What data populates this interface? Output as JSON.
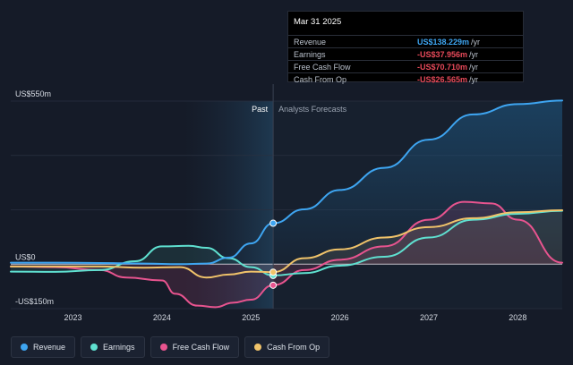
{
  "chart_data": {
    "type": "line",
    "title": "",
    "y_axis": {
      "min": -150,
      "max": 550,
      "ticks": [
        {
          "value": 550,
          "label": "US$550m"
        },
        {
          "value": 0,
          "label": "US$0"
        },
        {
          "value": -150,
          "label": "-US$150m"
        }
      ]
    },
    "x_axis": {
      "min": 2022.3,
      "max": 2028.5,
      "ticks": [
        {
          "value": 2023,
          "label": "2023"
        },
        {
          "value": 2024,
          "label": "2024"
        },
        {
          "value": 2025,
          "label": "2025"
        },
        {
          "value": 2026,
          "label": "2026"
        },
        {
          "value": 2027,
          "label": "2027"
        },
        {
          "value": 2028,
          "label": "2028"
        }
      ]
    },
    "divider": {
      "x": 2025.25,
      "past_label": "Past",
      "forecast_label": "Analysts Forecasts",
      "highlight_start": 2024.25
    },
    "series": [
      {
        "name": "Revenue",
        "color": "#3ea5f1",
        "points": [
          [
            2022.3,
            5
          ],
          [
            2022.8,
            5
          ],
          [
            2023.3,
            4
          ],
          [
            2023.8,
            2
          ],
          [
            2024.2,
            0
          ],
          [
            2024.5,
            2
          ],
          [
            2024.75,
            22
          ],
          [
            2025.0,
            70
          ],
          [
            2025.25,
            138
          ],
          [
            2025.6,
            185
          ],
          [
            2026.0,
            250
          ],
          [
            2026.5,
            325
          ],
          [
            2027.0,
            420
          ],
          [
            2027.5,
            505
          ],
          [
            2028.0,
            540
          ],
          [
            2028.5,
            552
          ]
        ]
      },
      {
        "name": "Earnings",
        "color": "#5fe0d0",
        "points": [
          [
            2022.3,
            -25
          ],
          [
            2022.8,
            -26
          ],
          [
            2023.3,
            -20
          ],
          [
            2023.7,
            10
          ],
          [
            2024.0,
            60
          ],
          [
            2024.3,
            62
          ],
          [
            2024.5,
            55
          ],
          [
            2024.75,
            20
          ],
          [
            2025.0,
            -10
          ],
          [
            2025.25,
            -38
          ],
          [
            2025.6,
            -30
          ],
          [
            2026.0,
            -5
          ],
          [
            2026.5,
            25
          ],
          [
            2027.0,
            90
          ],
          [
            2027.5,
            150
          ],
          [
            2028.0,
            170
          ],
          [
            2028.5,
            180
          ]
        ]
      },
      {
        "name": "Free Cash Flow",
        "color": "#e8548f",
        "points": [
          [
            2022.3,
            -8
          ],
          [
            2022.8,
            -10
          ],
          [
            2023.3,
            -20
          ],
          [
            2023.6,
            -45
          ],
          [
            2024.0,
            -55
          ],
          [
            2024.15,
            -100
          ],
          [
            2024.4,
            -140
          ],
          [
            2024.6,
            -145
          ],
          [
            2024.8,
            -130
          ],
          [
            2025.0,
            -120
          ],
          [
            2025.25,
            -71
          ],
          [
            2025.6,
            -20
          ],
          [
            2026.0,
            15
          ],
          [
            2026.5,
            60
          ],
          [
            2027.0,
            150
          ],
          [
            2027.4,
            210
          ],
          [
            2027.7,
            205
          ],
          [
            2028.0,
            150
          ],
          [
            2028.5,
            5
          ]
        ]
      },
      {
        "name": "Cash From Op",
        "color": "#f0c36a",
        "points": [
          [
            2022.3,
            -8
          ],
          [
            2022.8,
            -8
          ],
          [
            2023.3,
            -8
          ],
          [
            2023.8,
            -12
          ],
          [
            2024.2,
            -10
          ],
          [
            2024.5,
            -45
          ],
          [
            2024.75,
            -35
          ],
          [
            2025.0,
            -25
          ],
          [
            2025.25,
            -27
          ],
          [
            2025.6,
            20
          ],
          [
            2026.0,
            50
          ],
          [
            2026.5,
            90
          ],
          [
            2027.0,
            125
          ],
          [
            2027.5,
            155
          ],
          [
            2028.0,
            175
          ],
          [
            2028.5,
            182
          ]
        ]
      }
    ],
    "tooltip": {
      "date": "Mar 31 2025",
      "rows": [
        {
          "label": "Revenue",
          "value": "US$138.229m",
          "unit": "/yr",
          "color": "#3ea5f1"
        },
        {
          "label": "Earnings",
          "value": "-US$37.956m",
          "unit": "/yr",
          "color": "#e84a5a"
        },
        {
          "label": "Free Cash Flow",
          "value": "-US$70.710m",
          "unit": "/yr",
          "color": "#e84a5a"
        },
        {
          "label": "Cash From Op",
          "value": "-US$26.565m",
          "unit": "/yr",
          "color": "#e84a5a"
        }
      ]
    }
  },
  "legend": [
    {
      "label": "Revenue",
      "color": "#3ea5f1"
    },
    {
      "label": "Earnings",
      "color": "#5fe0d0"
    },
    {
      "label": "Free Cash Flow",
      "color": "#e8548f"
    },
    {
      "label": "Cash From Op",
      "color": "#f0c36a"
    }
  ]
}
